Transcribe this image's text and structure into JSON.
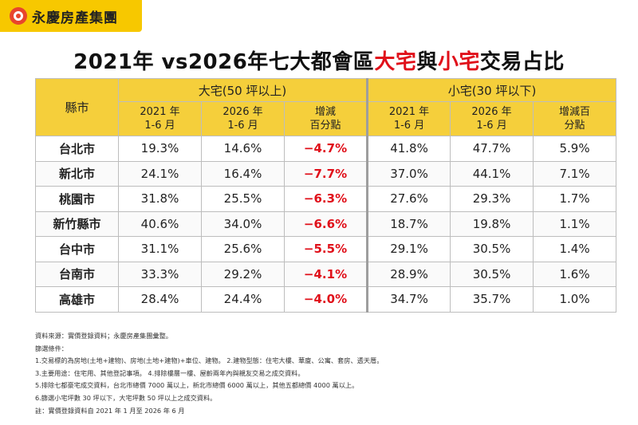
{
  "brand": {
    "name": "永慶房產集團",
    "logo_icon": "yongqing-logo-icon"
  },
  "title": {
    "part1": "2021年 vs2026年七大都會區",
    "large": "大宅",
    "mid": "與",
    "small": "小宅",
    "part2": "交易占比"
  },
  "table": {
    "city_header": "縣市",
    "large_group": "大宅(50 坪以上)",
    "small_group": "小宅(30 坪以下)",
    "large_sub": [
      [
        "2021 年",
        "1-6 月"
      ],
      [
        "2026 年",
        "1-6 月"
      ],
      [
        "增減",
        "百分點"
      ]
    ],
    "small_sub": [
      [
        "2021 年",
        "1-6 月"
      ],
      [
        "2026 年",
        "1-6 月"
      ],
      [
        "增減百",
        "分點"
      ]
    ],
    "rows": [
      {
        "city": "台北市",
        "l2021": "19.3%",
        "l2026": "14.6%",
        "ldiff": "−4.7%",
        "s2021": "41.8%",
        "s2026": "47.7%",
        "sdiff": "5.9%"
      },
      {
        "city": "新北市",
        "l2021": "24.1%",
        "l2026": "16.4%",
        "ldiff": "−7.7%",
        "s2021": "37.0%",
        "s2026": "44.1%",
        "sdiff": "7.1%"
      },
      {
        "city": "桃園市",
        "l2021": "31.8%",
        "l2026": "25.5%",
        "ldiff": "−6.3%",
        "s2021": "27.6%",
        "s2026": "29.3%",
        "sdiff": "1.7%"
      },
      {
        "city": "新竹縣市",
        "l2021": "40.6%",
        "l2026": "34.0%",
        "ldiff": "−6.6%",
        "s2021": "18.7%",
        "s2026": "19.8%",
        "sdiff": "1.1%"
      },
      {
        "city": "台中市",
        "l2021": "31.1%",
        "l2026": "25.6%",
        "ldiff": "−5.5%",
        "s2021": "29.1%",
        "s2026": "30.5%",
        "sdiff": "1.4%"
      },
      {
        "city": "台南市",
        "l2021": "33.3%",
        "l2026": "29.2%",
        "ldiff": "−4.1%",
        "s2021": "28.9%",
        "s2026": "30.5%",
        "sdiff": "1.6%"
      },
      {
        "city": "高雄市",
        "l2021": "28.4%",
        "l2026": "24.4%",
        "ldiff": "−4.0%",
        "s2021": "34.7%",
        "s2026": "35.7%",
        "sdiff": "1.0%"
      }
    ]
  },
  "notes": [
    "資料來源：實價登錄資料；永慶房產集團彙整。",
    "篩選條件：",
    "1.交易標的為房地(土地+建物)、房地(土地+建物)+車位、建物。    2.建物型態：住宅大樓、華廈、公寓、套房、透天厝。",
    "3.主要用途：住宅用、其他登記事項。    4.排除樓層一樓、屋齡兩年內與親友交易之成交資料。",
    "5.排除七都豪宅成交資料，台北市總價 7000 萬以上，新北市總價 6000 萬以上，其他五都總價 4000 萬以上。",
    "6.篩選小宅坪數 30 坪以下，大宅坪數 50 坪以上之成交資料。",
    "註：實價登錄資料自 2021 年 1 月至 2026 年 6 月"
  ],
  "colors": {
    "accent": "#f5cf3b",
    "negative": "#e0101a",
    "logo_red": "#e8452c"
  }
}
